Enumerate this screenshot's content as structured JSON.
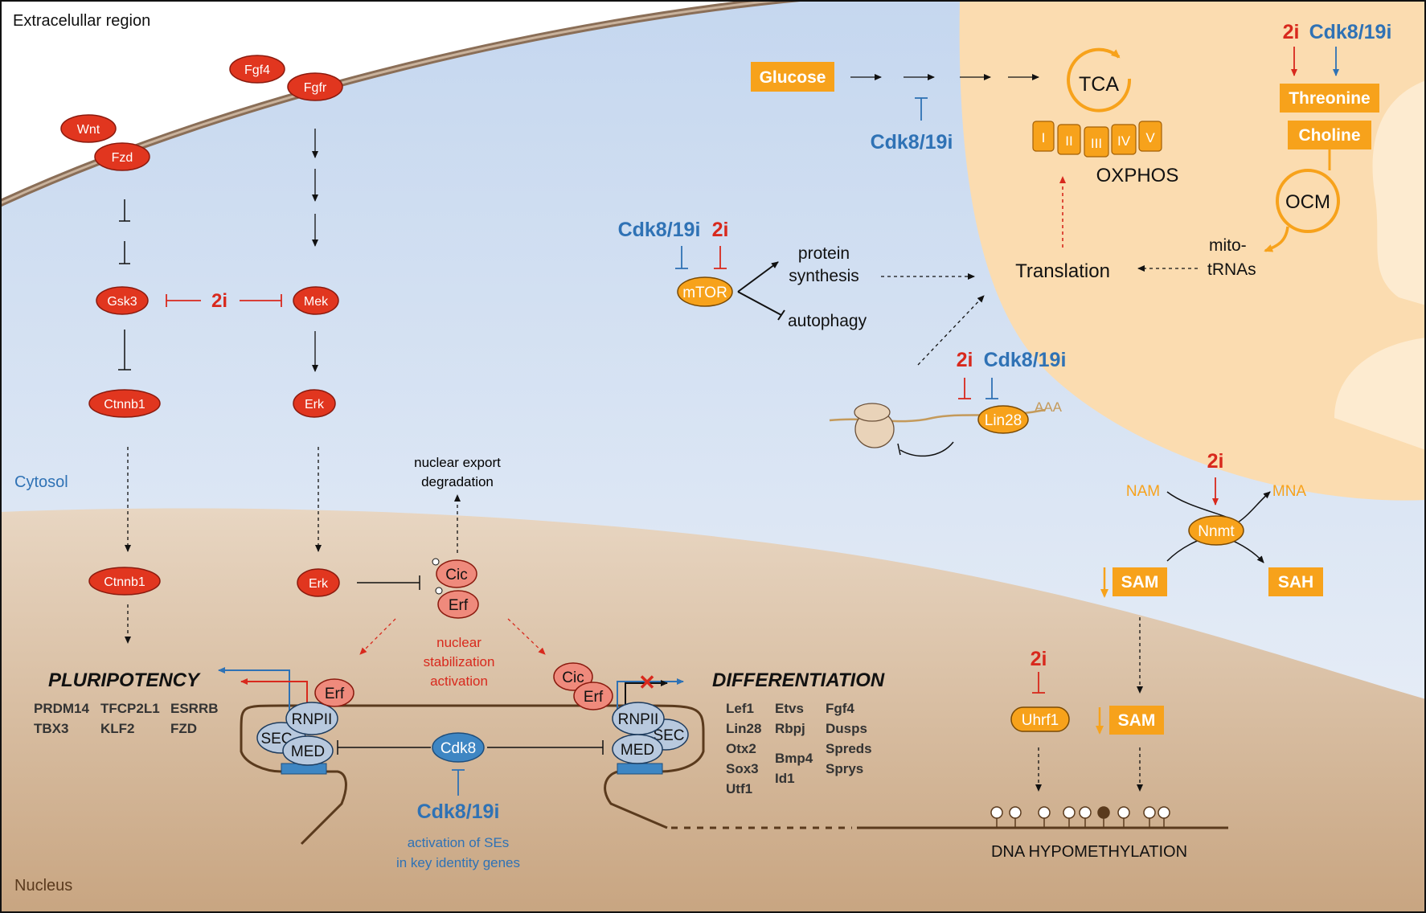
{
  "regions": {
    "extracellular": "Extracelullar region",
    "cytosol": "Cytosol",
    "nucleus": "Nucleus"
  },
  "inhibitors": {
    "two_i": "2i",
    "cdk": "Cdk8/19i"
  },
  "wnt_pathway": {
    "wnt": "Wnt",
    "fzd": "Fzd",
    "gsk3": "Gsk3",
    "ctnnb1": "Ctnnb1",
    "ctnnb1_nuc": "Ctnnb1"
  },
  "fgf_pathway": {
    "fgf4": "Fgf4",
    "fgfr": "Fgfr",
    "mek": "Mek",
    "erk": "Erk",
    "erk_nuc": "Erk"
  },
  "cic_erf": {
    "cic": "Cic",
    "erf": "Erf",
    "export_line1": "nuclear export",
    "export_line2": "degradation",
    "stab_line1": "nuclear",
    "stab_line2": "stabilization",
    "stab_line3": "activation"
  },
  "pluripotency": {
    "title": "PLURIPOTENCY",
    "genes_col1": [
      "PRDM14",
      "TBX3"
    ],
    "genes_col2": [
      "TFCP2L1",
      "KLF2"
    ],
    "genes_col3": [
      "ESRRB",
      "FZD"
    ],
    "erf": "Erf"
  },
  "differentiation": {
    "title": "DIFFERENTIATION",
    "genes_col1": [
      "Lef1",
      "Lin28",
      "Otx2",
      "Sox3",
      "Utf1"
    ],
    "genes_col2a": [
      "Etvs",
      "Rbpj"
    ],
    "genes_col2b": [
      "Bmp4",
      "Id1"
    ],
    "genes_col3": [
      "Fgf4",
      "Dusps",
      "Spreds",
      "Sprys"
    ],
    "cic": "Cic",
    "erf": "Erf"
  },
  "complex": {
    "rnpii": "RNPII",
    "sec": "SEC",
    "med": "MED",
    "cdk8": "Cdk8",
    "se_line1": "activation of SEs",
    "se_line2": "in key identity genes"
  },
  "metabolism": {
    "glucose": "Glucose",
    "tca": "TCA",
    "complexes": [
      "I",
      "II",
      "III",
      "IV",
      "V"
    ],
    "oxphos": "OXPHOS",
    "threonine": "Threonine",
    "choline": "Choline",
    "ocm": "OCM",
    "mito_line1": "mito-",
    "mito_line2": "tRNAs",
    "translation": "Translation"
  },
  "mtor": {
    "mtor": "mTOR",
    "protein_line1": "protein",
    "protein_line2": "synthesis",
    "autophagy": "autophagy"
  },
  "lin28": {
    "lin28": "Lin28",
    "aaa": "AAA"
  },
  "methylation": {
    "nam": "NAM",
    "mna": "MNA",
    "nnmt": "Nnmt",
    "sam": "SAM",
    "sah": "SAH",
    "sam_nuc": "SAM",
    "uhrf1": "Uhrf1",
    "dna": "DNA HYPOMETHYLATION"
  },
  "colors": {
    "red_node": "#e1361f",
    "pink_node": "#ef8a7c",
    "orange": "#f7a21b",
    "blue_node": "#3e86c3",
    "blue_text": "#2f72b5",
    "red_text": "#d8291d",
    "nucleus": "#d9b898",
    "mito": "#fbdcb0"
  }
}
